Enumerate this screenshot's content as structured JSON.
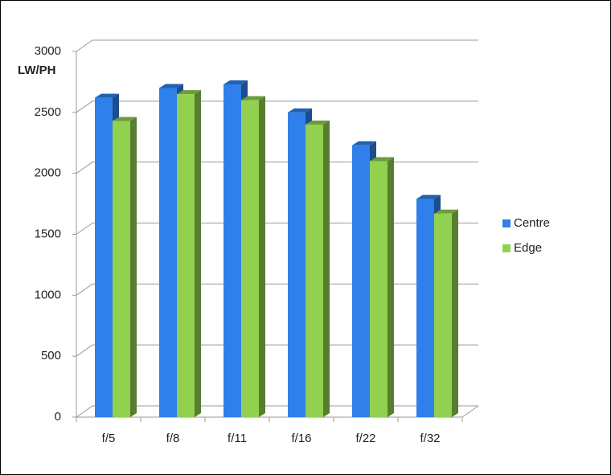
{
  "chart_data": {
    "type": "bar3d",
    "y_label": "LW/PH",
    "categories": [
      "f/5",
      "f/8",
      "f/11",
      "f/16",
      "f/22",
      "f/32"
    ],
    "series": [
      {
        "name": "Centre",
        "color": "#2f80ea",
        "values": [
          2620,
          2700,
          2730,
          2500,
          2230,
          1790
        ]
      },
      {
        "name": "Edge",
        "color": "#92d050",
        "values": [
          2430,
          2650,
          2600,
          2400,
          2100,
          1670
        ]
      }
    ],
    "ylim": [
      0,
      3000
    ],
    "yticks": [
      0,
      500,
      1000,
      1500,
      2000,
      2500,
      3000
    ],
    "grid": true,
    "legend": "right"
  }
}
